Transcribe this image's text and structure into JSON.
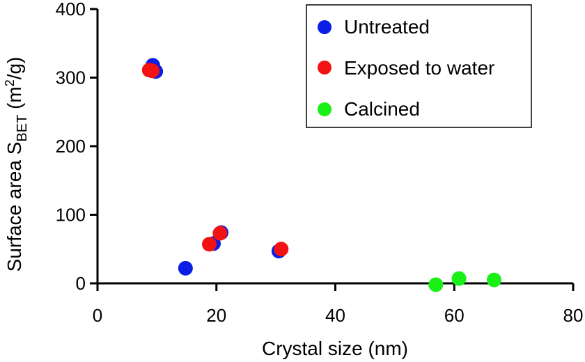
{
  "chart_data": {
    "type": "scatter",
    "title": "",
    "xlabel": "Crystal size (nm)",
    "ylabel": {
      "main": "Surface area S",
      "sub": "BET",
      "unit_open": " (m",
      "unit_sup": "2",
      "unit_close": "/g)"
    },
    "xlim": [
      0,
      80
    ],
    "ylim": [
      0,
      400
    ],
    "x_ticks": [
      "0",
      "20",
      "40",
      "60",
      "80"
    ],
    "y_ticks": [
      "0",
      "100",
      "200",
      "300",
      "400"
    ],
    "grid": false,
    "legend_position": "top-right",
    "series": [
      {
        "name": "Untreated",
        "color": "#0a1ee6",
        "points": [
          [
            9.3,
            318
          ],
          [
            9.8,
            309
          ],
          [
            14.8,
            22
          ],
          [
            19.5,
            58
          ],
          [
            20.8,
            74
          ],
          [
            30.5,
            47
          ]
        ]
      },
      {
        "name": "Exposed to water",
        "color": "#f21212",
        "points": [
          [
            8.7,
            311
          ],
          [
            9.2,
            310
          ],
          [
            18.8,
            57
          ],
          [
            20.6,
            73
          ],
          [
            30.9,
            50
          ]
        ]
      },
      {
        "name": "Calcined",
        "color": "#18f018",
        "points": [
          [
            56.9,
            -2
          ],
          [
            60.8,
            7
          ],
          [
            66.7,
            5
          ]
        ]
      }
    ]
  }
}
